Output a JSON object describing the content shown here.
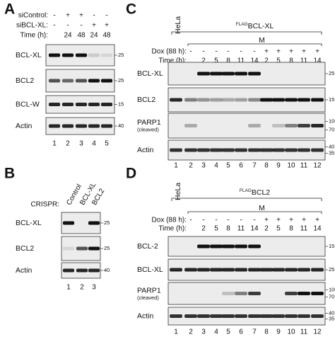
{
  "panels": [
    {
      "letter": "A",
      "conditions": [
        {
          "label": "siControl:",
          "values": [
            "-",
            "+",
            "+",
            "-",
            "-"
          ]
        },
        {
          "label": "siBCL-XL:",
          "values": [
            "-",
            "-",
            "-",
            "+",
            "+"
          ]
        },
        {
          "label": "Time (h):",
          "values": [
            null,
            "24",
            "48",
            "24",
            "48"
          ]
        }
      ],
      "blots": [
        {
          "label": "BCL-XL",
          "markers": [
            "25"
          ]
        },
        {
          "label": "BCL2",
          "markers": [
            "25"
          ]
        },
        {
          "label": "BCL-W",
          "markers": [
            "15"
          ]
        },
        {
          "label": "Actin",
          "markers": [
            "40"
          ]
        }
      ],
      "lanes": [
        "1",
        "2",
        "3",
        "4",
        "5"
      ]
    },
    {
      "letter": "B",
      "conditions": [
        {
          "label": "CRISPR:",
          "values": [
            "Control",
            "BCL-XL",
            "BCL2"
          ]
        }
      ],
      "blots": [
        {
          "label": "BCL-XL",
          "markers": [
            "25"
          ]
        },
        {
          "label": "BCL2",
          "markers": [
            "25"
          ]
        },
        {
          "label": "Actin",
          "markers": [
            "40"
          ]
        }
      ],
      "lanes": [
        "1",
        "2",
        "3"
      ]
    },
    {
      "letter": "C",
      "cell_line": "HeLa",
      "superscript": "FLAG",
      "construct": "BCL-XL",
      "group": "M",
      "conditions": [
        {
          "label": "Dox (88 h):",
          "values": [
            null,
            "-",
            "-",
            "-",
            "-",
            "-",
            "-",
            "+",
            "+",
            "+",
            "+",
            "+"
          ]
        },
        {
          "label": "Time (h):",
          "values": [
            null,
            null,
            "2",
            "5",
            "8",
            "11",
            "14",
            "2",
            "5",
            "8",
            "11",
            "14"
          ]
        }
      ],
      "blots": [
        {
          "label": "BCL-XL",
          "markers": [
            "25"
          ]
        },
        {
          "label": "BCL2",
          "markers": [
            "15"
          ]
        },
        {
          "label": "PARP1",
          "sublabel": "(cleaved)",
          "markers": [
            "100",
            "70"
          ]
        },
        {
          "label": "Actin",
          "markers": [
            "40",
            "35"
          ]
        }
      ],
      "lanes": [
        "1",
        "2",
        "3",
        "4",
        "5",
        "6",
        "7",
        "8",
        "9",
        "10",
        "11",
        "12"
      ]
    },
    {
      "letter": "D",
      "cell_line": "HeLa",
      "superscript": "FLAG",
      "construct": "BCL2",
      "group": "M",
      "conditions": [
        {
          "label": "Dox (88 h):",
          "values": [
            null,
            "-",
            "-",
            "-",
            "-",
            "-",
            "-",
            "+",
            "+",
            "+",
            "+",
            "+"
          ]
        },
        {
          "label": "Time (h):",
          "values": [
            null,
            null,
            "2",
            "5",
            "8",
            "11",
            "14",
            "2",
            "5",
            "8",
            "11",
            "14"
          ]
        }
      ],
      "blots": [
        {
          "label": "BCL-2",
          "markers": [
            "15"
          ]
        },
        {
          "label": "BCL-XL",
          "markers": [
            "25"
          ]
        },
        {
          "label": "PARP1",
          "sublabel": "(cleaved)",
          "markers": [
            "100",
            "70"
          ]
        },
        {
          "label": "Actin",
          "markers": [
            "40",
            "35"
          ]
        }
      ],
      "lanes": [
        "1",
        "2",
        "3",
        "4",
        "5",
        "6",
        "7",
        "8",
        "9",
        "10",
        "11",
        "12"
      ]
    }
  ]
}
